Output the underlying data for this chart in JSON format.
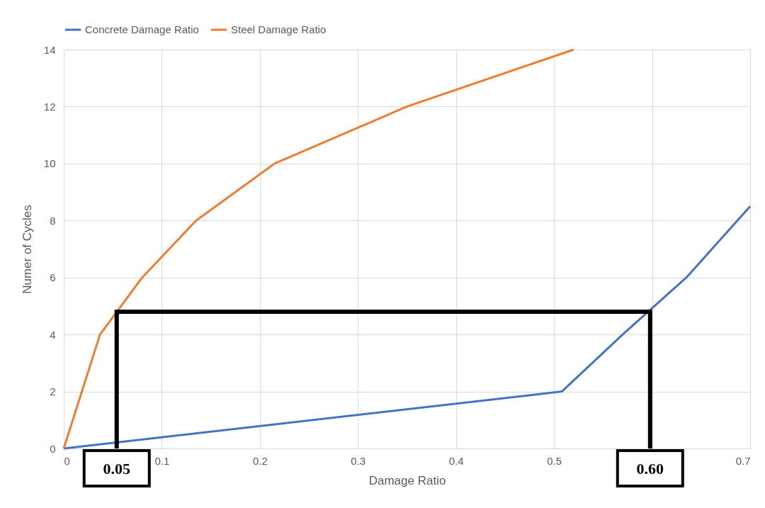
{
  "chart_data": {
    "type": "line",
    "xlabel": "Damage Ratio",
    "ylabel": "Numer of Cycles",
    "series": [
      {
        "name": "Concrete Damage Ratio",
        "color": "#4472c4",
        "x": [
          0,
          0.508,
          0.57,
          0.635,
          0.7
        ],
        "values": [
          0,
          2,
          4,
          6,
          8.5
        ]
      },
      {
        "name": "Steel Damage Ratio",
        "color": "#ed7d31",
        "x": [
          0,
          0.037,
          0.08,
          0.135,
          0.215,
          0.35,
          0.52
        ],
        "values": [
          0,
          4,
          6,
          8,
          10,
          12,
          14
        ]
      },
      {
        "color": "#000000",
        "x": [
          0.054,
          0.054,
          0.598,
          0.598
        ],
        "values": [
          0,
          4.8,
          4.8,
          0
        ]
      }
    ],
    "xlim": [
      0,
      0.7
    ],
    "xticks": [
      0,
      0.1,
      0.2,
      0.3,
      0.4,
      0.5,
      {
        "value": 0.6,
        "label": null
      },
      0.7
    ],
    "ylim": [
      0,
      14
    ],
    "yticks": [
      0,
      2,
      4,
      6,
      8,
      10,
      12,
      14
    ],
    "annotations": [
      "0.05",
      "0.60"
    ],
    "grid": true,
    "legend": "top",
    "marker": "none",
    "line_style": "solid"
  }
}
